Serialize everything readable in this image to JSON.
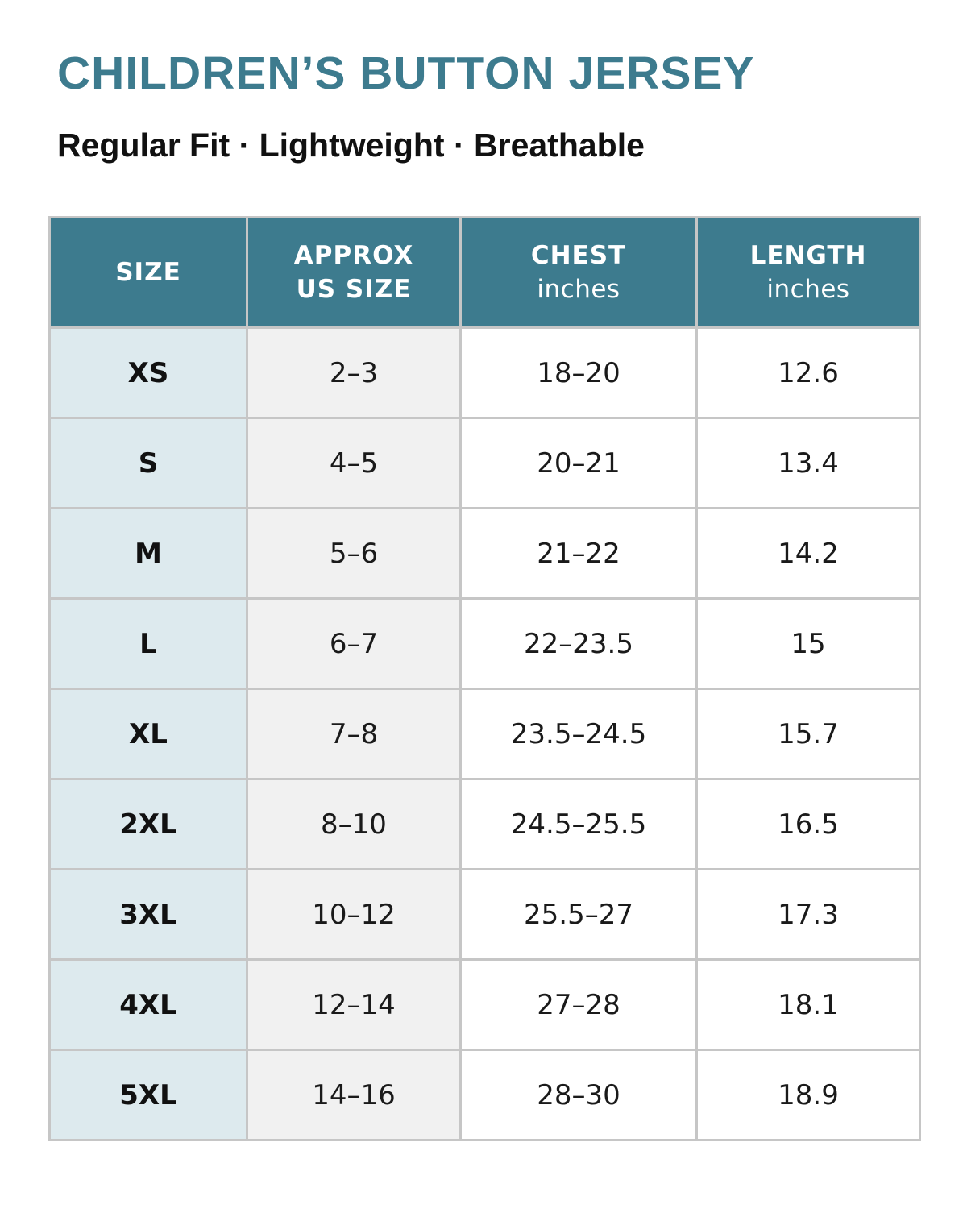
{
  "title": "CHILDREN’S BUTTON JERSEY",
  "subtitle": "Regular Fit · Lightweight · Breathable",
  "colors": {
    "title": "#3d7b8e",
    "header_bg": "#3d7b8e",
    "header_text": "#ffffff",
    "size_column_bg": "#ddeaee",
    "us_size_column_bg": "#f1f1f1",
    "body_bg": "#ffffff",
    "grid_line": "#c6c6c6"
  },
  "table": {
    "headers": [
      {
        "line1": "SIZE",
        "line2": ""
      },
      {
        "line1": "APPROX",
        "line2": "US SIZE"
      },
      {
        "line1": "CHEST",
        "unit": "inches"
      },
      {
        "line1": "LENGTH",
        "unit": "inches"
      }
    ],
    "rows": [
      {
        "size": "XS",
        "us_size": "2–3",
        "chest": "18–20",
        "length": "12.6"
      },
      {
        "size": "S",
        "us_size": "4–5",
        "chest": "20–21",
        "length": "13.4"
      },
      {
        "size": "M",
        "us_size": "5–6",
        "chest": "21–22",
        "length": "14.2"
      },
      {
        "size": "L",
        "us_size": "6–7",
        "chest": "22–23.5",
        "length": "15"
      },
      {
        "size": "XL",
        "us_size": "7–8",
        "chest": "23.5–24.5",
        "length": "15.7"
      },
      {
        "size": "2XL",
        "us_size": "8–10",
        "chest": "24.5–25.5",
        "length": "16.5"
      },
      {
        "size": "3XL",
        "us_size": "10–12",
        "chest": "25.5–27",
        "length": "17.3"
      },
      {
        "size": "4XL",
        "us_size": "12–14",
        "chest": "27–28",
        "length": "18.1"
      },
      {
        "size": "5XL",
        "us_size": "14–16",
        "chest": "28–30",
        "length": "18.9"
      }
    ]
  }
}
